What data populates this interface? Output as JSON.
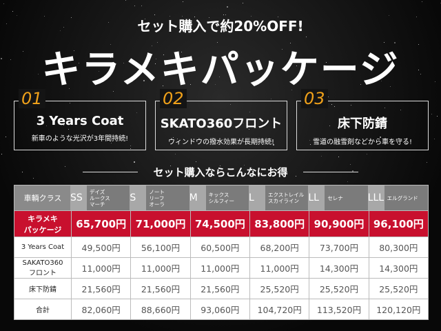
{
  "header": {
    "subtitle": "セット購入で約20%OFF!",
    "title": "キラメキパッケージ"
  },
  "features": [
    {
      "number": "01",
      "title": "3 Years Coat",
      "description": "新車のような光沢が3年間持続!"
    },
    {
      "number": "02",
      "title": "SKATO360フロント",
      "description": "ウィンドウの撥水効果が長期持続!"
    },
    {
      "number": "03",
      "title": "床下防錆",
      "description": "雪道の融雪剤などから車を守る!"
    }
  ],
  "comparison_heading": "セット購入ならこんなにお得",
  "table": {
    "corner": "車輌クラス",
    "columns": [
      {
        "class": "SS",
        "cars": [
          "デイズ",
          "ルークス",
          "マーチ"
        ]
      },
      {
        "class": "S",
        "cars": [
          "ノート",
          "リーフ",
          "オーラ"
        ]
      },
      {
        "class": "M",
        "cars": [
          "キックス",
          "シルフィー"
        ]
      },
      {
        "class": "L",
        "cars": [
          "エクストレイル",
          "スカイライン"
        ]
      },
      {
        "class": "LL",
        "cars": [
          "セレナ"
        ]
      },
      {
        "class": "LLL",
        "cars": [
          "エルグランド"
        ]
      }
    ],
    "rows": [
      {
        "label": [
          "キラメキ",
          "パッケージ"
        ],
        "values": [
          "65,700円",
          "71,000円",
          "74,500円",
          "83,800円",
          "90,900円",
          "96,100円"
        ]
      },
      {
        "label": [
          "3 Years Coat"
        ],
        "values": [
          "49,500円",
          "56,100円",
          "60,500円",
          "68,200円",
          "73,700円",
          "80,300円"
        ]
      },
      {
        "label": [
          "SAKATO360",
          "フロント"
        ],
        "values": [
          "11,000円",
          "11,000円",
          "11,000円",
          "11,000円",
          "14,300円",
          "14,300円"
        ]
      },
      {
        "label": [
          "床下防錆"
        ],
        "values": [
          "21,560円",
          "21,560円",
          "21,560円",
          "25,520円",
          "25,520円",
          "25,520円"
        ]
      },
      {
        "label": [
          "合計"
        ],
        "values": [
          "82,060円",
          "88,660円",
          "93,060円",
          "104,720円",
          "113,520円",
          "120,120円"
        ]
      }
    ]
  }
}
